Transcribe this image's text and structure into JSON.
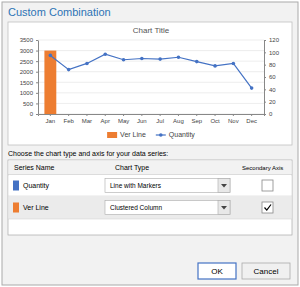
{
  "chart_data": {
    "type": "bar",
    "title": "Chart Title",
    "categories": [
      "Jan",
      "Feb",
      "Mar",
      "Apr",
      "May",
      "Jun",
      "Jul",
      "Aug",
      "Sep",
      "Oct",
      "Nov",
      "Dec"
    ],
    "series": [
      {
        "name": "Ver Line",
        "type": "bar",
        "color": "#ED7D31",
        "values": [
          3000,
          null,
          null,
          null,
          null,
          null,
          null,
          null,
          null,
          null,
          null,
          null
        ]
      },
      {
        "name": "Quantity",
        "type": "line",
        "color": "#4472C4",
        "marker": "circle",
        "axis": "y2",
        "values": [
          95,
          72,
          82,
          97,
          88,
          90,
          89,
          92,
          85,
          78,
          82,
          42
        ]
      }
    ],
    "ylim": [
      0,
      3500
    ],
    "yticks": [
      0,
      500,
      1000,
      1500,
      2000,
      2500,
      3000,
      3500
    ],
    "y2lim": [
      0,
      120
    ],
    "y2ticks": [
      0,
      20,
      40,
      60,
      80,
      100,
      120
    ],
    "grid": true,
    "legend": "bottom",
    "annotations": [
      "Custom Combination",
      "Choose the chart type and axis for your data series:",
      "Series Name",
      "Chart Type",
      "Secondary Axis",
      "Line with Markers",
      "Clustered Column",
      "OK",
      "Cancel"
    ]
  }
}
